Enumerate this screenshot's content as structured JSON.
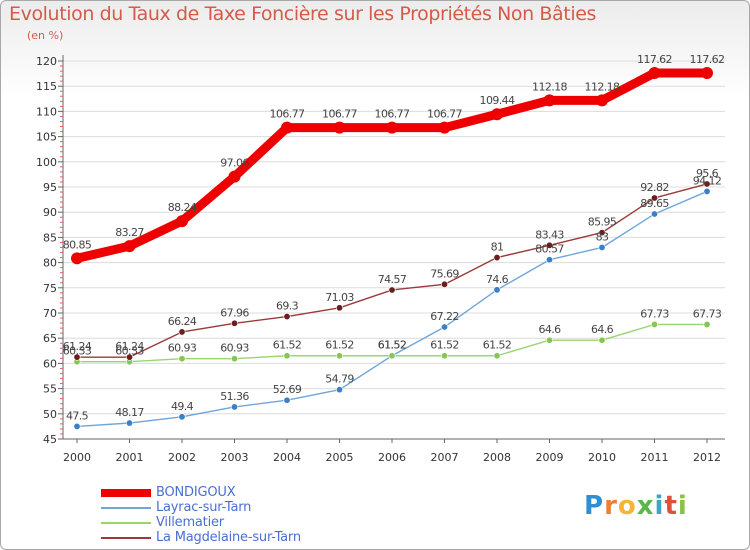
{
  "title": "Evolution du Taux de Taxe Foncière sur les Propriétés Non Bâties",
  "unit_label": "(en %)",
  "logo": {
    "text": "Proxiti",
    "letters": [
      "P",
      "r",
      "o",
      "x",
      "i",
      "t",
      "i"
    ],
    "colors": [
      "#2d8fd5",
      "#e8803a",
      "#f1b632",
      "#57b847",
      "#3ca3c9",
      "#e04e3c",
      "#88c443"
    ]
  },
  "chart_data": {
    "type": "line",
    "title": "Evolution du Taux de Taxe Foncière sur les Propriétés Non Bâties",
    "ylabel": "(en %)",
    "xlabel": "",
    "ylim": [
      45,
      120
    ],
    "y_ticks": [
      45,
      50,
      55,
      60,
      65,
      70,
      75,
      80,
      85,
      90,
      95,
      100,
      105,
      110,
      115,
      120
    ],
    "x": [
      "2000",
      "2001",
      "2002",
      "2003",
      "2004",
      "2005",
      "2006",
      "2007",
      "2008",
      "2009",
      "2010",
      "2011",
      "2012"
    ],
    "grid": "horizontal",
    "legend_position": "bottom-left",
    "series": [
      {
        "name": "BONDIGOUX",
        "color": "#ee0000",
        "marker_color": "#ee0000",
        "emphasis": "thick",
        "values": [
          80.85,
          83.27,
          88.24,
          97.06,
          106.77,
          106.77,
          106.77,
          106.77,
          109.44,
          112.18,
          112.18,
          117.62,
          117.62
        ],
        "labels": [
          "80.85",
          "83.27",
          "88.24",
          "97.06",
          "106.77",
          "106.77",
          "106.77",
          "106.77",
          "109.44",
          "112.18",
          "112.18",
          "117.62",
          "117.62"
        ]
      },
      {
        "name": "Layrac-sur-Tarn",
        "color": "#6fa6da",
        "marker_color": "#3b7fc4",
        "emphasis": "thin",
        "values": [
          47.5,
          48.17,
          49.4,
          51.36,
          52.69,
          54.79,
          61.52,
          67.22,
          74.6,
          80.57,
          83,
          89.65,
          94.12
        ],
        "labels": [
          "47.5",
          "48.17",
          "49.4",
          "51.36",
          "52.69",
          "54.79",
          "61.52",
          "67.22",
          "74.6",
          "80.57",
          "83",
          "89.65",
          "94.12"
        ]
      },
      {
        "name": "Villematier",
        "color": "#9ad56e",
        "marker_color": "#86c653",
        "emphasis": "thin",
        "values": [
          60.33,
          60.33,
          60.93,
          60.93,
          61.52,
          61.52,
          61.52,
          61.52,
          61.52,
          64.6,
          64.6,
          67.73,
          67.73
        ],
        "labels": [
          "60.33",
          "60.33",
          "60.93",
          "60.93",
          "61.52",
          "61.52",
          "61.52",
          "61.52",
          "61.52",
          "64.6",
          "64.6",
          "67.73",
          "67.73"
        ]
      },
      {
        "name": "La Magdelaine-sur-Tarn",
        "color": "#9a3a3a",
        "marker_color": "#6b1e1e",
        "emphasis": "thin",
        "values": [
          61.24,
          61.24,
          66.24,
          67.96,
          69.3,
          71.03,
          74.57,
          75.69,
          81,
          83.43,
          85.95,
          92.82,
          95.6
        ],
        "labels": [
          "61.24",
          "61.24",
          "66.24",
          "67.96",
          "69.3",
          "71.03",
          "74.57",
          "75.69",
          "81",
          "83.43",
          "85.95",
          "92.82",
          "95.6"
        ]
      }
    ]
  }
}
